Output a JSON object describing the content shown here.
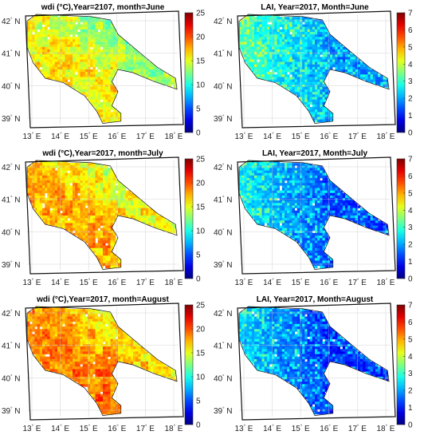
{
  "chart_data": [
    {
      "type": "heatmap",
      "title": "wdi (°C),Year=2107, month=June",
      "x_ticks": [
        "13",
        "14",
        "15",
        "16",
        "17",
        "18"
      ],
      "y_ticks": [
        "39",
        "40",
        "41",
        "42"
      ],
      "x_suffix": "E",
      "y_suffix": "N",
      "colorbar": {
        "ticks": [
          0,
          5,
          10,
          15,
          20,
          25
        ],
        "range": [
          0,
          25
        ]
      },
      "field": "wdi",
      "mean_level": 13,
      "grid": true
    },
    {
      "type": "heatmap",
      "title": "LAI, Year=2017, Month=June",
      "x_ticks": [
        "13",
        "14",
        "15",
        "16",
        "17",
        "18"
      ],
      "y_ticks": [
        "39",
        "40",
        "41",
        "42"
      ],
      "x_suffix": "E",
      "y_suffix": "N",
      "colorbar": {
        "ticks": [
          0,
          1,
          2,
          3,
          4,
          5,
          6,
          7
        ],
        "range": [
          0,
          7
        ]
      },
      "field": "lai",
      "mean_level": 2.0,
      "grid": true
    },
    {
      "type": "heatmap",
      "title": "wdi (°C),Year=2017, month=July",
      "x_ticks": [
        "13",
        "14",
        "15",
        "16",
        "17",
        "18"
      ],
      "y_ticks": [
        "39",
        "40",
        "41",
        "42"
      ],
      "x_suffix": "E",
      "y_suffix": "N",
      "colorbar": {
        "ticks": [
          0,
          5,
          10,
          15,
          20,
          25
        ],
        "range": [
          0,
          25
        ]
      },
      "field": "wdi",
      "mean_level": 15,
      "grid": true
    },
    {
      "type": "heatmap",
      "title": "LAI, Year=2017, Month=July",
      "x_ticks": [
        "13",
        "14",
        "15",
        "16",
        "17",
        "18"
      ],
      "y_ticks": [
        "39",
        "40",
        "41",
        "42"
      ],
      "x_suffix": "E",
      "y_suffix": "N",
      "colorbar": {
        "ticks": [
          0,
          1,
          2,
          3,
          4,
          5,
          6,
          7
        ],
        "range": [
          0,
          7
        ]
      },
      "field": "lai",
      "mean_level": 1.5,
      "grid": true
    },
    {
      "type": "heatmap",
      "title": "wdi (°C),Year=2017, month=August",
      "x_ticks": [
        "13",
        "14",
        "15",
        "16",
        "17",
        "18"
      ],
      "y_ticks": [
        "39",
        "40",
        "41",
        "42"
      ],
      "x_suffix": "E",
      "y_suffix": "N",
      "colorbar": {
        "ticks": [
          0,
          5,
          10,
          15,
          20,
          25
        ],
        "range": [
          0,
          25
        ]
      },
      "field": "wdi",
      "mean_level": 16,
      "grid": true
    },
    {
      "type": "heatmap",
      "title": "LAI, Year=2017, Month=August",
      "x_ticks": [
        "13",
        "14",
        "15",
        "16",
        "17",
        "18"
      ],
      "y_ticks": [
        "39",
        "40",
        "41",
        "42"
      ],
      "x_suffix": "E",
      "y_suffix": "N",
      "colorbar": {
        "ticks": [
          0,
          1,
          2,
          3,
          4,
          5,
          6,
          7
        ],
        "range": [
          0,
          7
        ]
      },
      "field": "lai",
      "mean_level": 1.3,
      "grid": true
    }
  ],
  "colormap": "jet"
}
